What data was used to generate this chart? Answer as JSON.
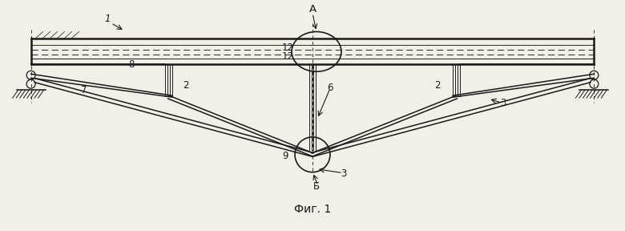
{
  "bg_color": "#f2efe8",
  "line_color": "#1a1a1a",
  "fig_width": 7.8,
  "fig_height": 2.88,
  "dpi": 100,
  "caption": "Фиг. 1",
  "xlim": [
    0,
    7.8
  ],
  "ylim": [
    0,
    2.88
  ]
}
